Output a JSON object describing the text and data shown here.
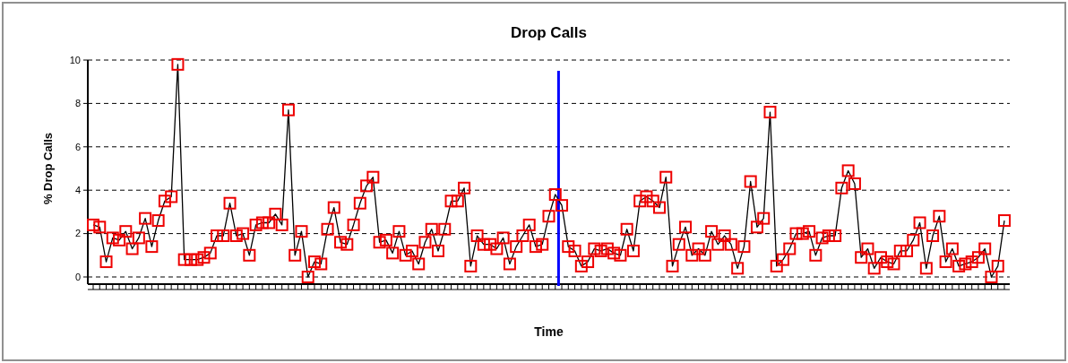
{
  "chart_data": {
    "type": "line",
    "title": "Drop Calls",
    "xlabel": "Time",
    "ylabel": "% Drop Calls",
    "categories": [
      null,
      null,
      null,
      null,
      null,
      null,
      null,
      null,
      null,
      null,
      null,
      null,
      null,
      null,
      null,
      null,
      null,
      null,
      null,
      null,
      null,
      null,
      null,
      null,
      null,
      null,
      null,
      null,
      null,
      null,
      null,
      null,
      null,
      null,
      null,
      null,
      null,
      null,
      null,
      null,
      null,
      null,
      null,
      null,
      null,
      null,
      null,
      null,
      null,
      null,
      null,
      null,
      null,
      null,
      null,
      null,
      null,
      null,
      null,
      null,
      null,
      null,
      null,
      null,
      null,
      null,
      null,
      null,
      null,
      null,
      null,
      null,
      null,
      null,
      null,
      null,
      null,
      null,
      null,
      null,
      null,
      null,
      null,
      null,
      null,
      null,
      null,
      null,
      null,
      null,
      null,
      null,
      null,
      null,
      null,
      null,
      null,
      null,
      null,
      null,
      null,
      null,
      null,
      null,
      null,
      null,
      null,
      null,
      null,
      null,
      null,
      null,
      null,
      null,
      null,
      null,
      null,
      null,
      null,
      null,
      null,
      null,
      null,
      null,
      null,
      null,
      null,
      null,
      null,
      null,
      null,
      null,
      null,
      null,
      null,
      null,
      null,
      null,
      null,
      null,
      null
    ],
    "series": [
      {
        "color": "#ee0000",
        "values": [
          2.4,
          2.3,
          0.7,
          1.8,
          1.7,
          2.1,
          1.3,
          1.8,
          2.7,
          1.4,
          2.6,
          3.5,
          3.7,
          9.8,
          0.8,
          0.8,
          0.8,
          0.9,
          1.1,
          1.9,
          1.9,
          3.4,
          1.9,
          2.0,
          1.0,
          2.4,
          2.5,
          2.5,
          2.9,
          2.4,
          7.7,
          1.0,
          2.1,
          0.0,
          0.7,
          0.6,
          2.2,
          3.2,
          1.6,
          1.5,
          2.4,
          3.4,
          4.2,
          4.6,
          1.6,
          1.7,
          1.1,
          2.1,
          1.0,
          1.2,
          0.6,
          1.6,
          2.2,
          1.2,
          2.2,
          3.5,
          3.5,
          4.1,
          0.5,
          1.9,
          1.5,
          1.5,
          1.3,
          1.8,
          0.6,
          1.4,
          1.9,
          2.4,
          1.4,
          1.5,
          2.8,
          3.8,
          3.3,
          1.4,
          1.2,
          0.5,
          0.7,
          1.3,
          1.2,
          1.3,
          1.1,
          1.0,
          2.2,
          1.2,
          3.5,
          3.7,
          3.5,
          3.2,
          4.6,
          0.5,
          1.5,
          2.3,
          1.0,
          1.3,
          1.0,
          2.1,
          1.5,
          1.9,
          1.5,
          0.4,
          1.4,
          4.4,
          2.3,
          2.7,
          7.6,
          0.5,
          0.8,
          1.3,
          2.0,
          2.0,
          2.1,
          1.0,
          1.8,
          1.9,
          1.9,
          4.1,
          4.9,
          4.3,
          0.9,
          1.3,
          0.4,
          0.9,
          0.7,
          0.6,
          1.2,
          1.2,
          1.7,
          2.5,
          0.4,
          1.9,
          2.8,
          0.7,
          1.3,
          0.5,
          0.6,
          0.7,
          0.9,
          1.3,
          0.0,
          0.5,
          2.6
        ]
      }
    ],
    "ylim": [
      0,
      10
    ],
    "yticks": [
      0,
      2,
      4,
      6,
      8,
      10
    ],
    "grid": "y",
    "marker": "square",
    "line_style": "solid"
  }
}
